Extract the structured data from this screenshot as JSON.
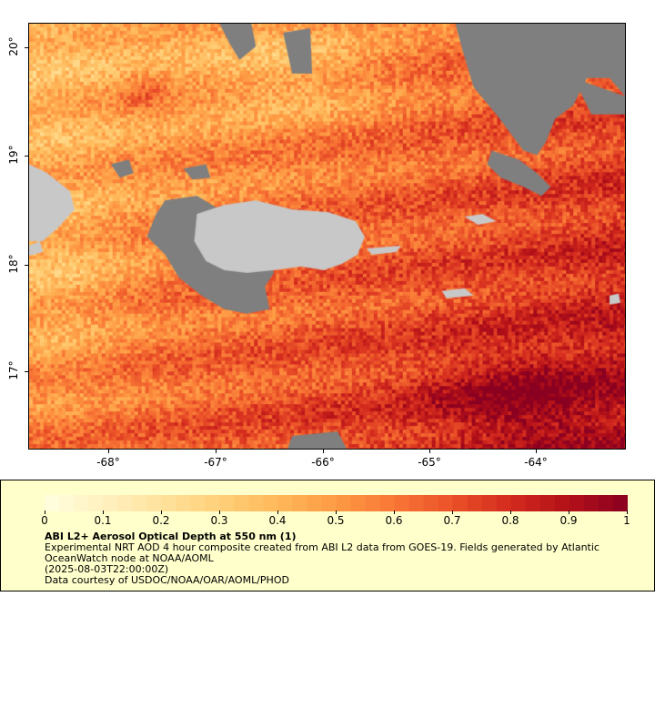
{
  "map": {
    "lat_labels": [
      "20°",
      "19°",
      "18°",
      "17°"
    ],
    "lon_labels": [
      "-68°",
      "-67°",
      "-66°",
      "-65°",
      "-64°"
    ],
    "extent": {
      "lon_min": -68.75,
      "lon_max": -63.25,
      "lat_min": 16.3,
      "lat_max": 20.25
    },
    "colors": {
      "land": "#c8c8c8",
      "no_data": "#7f7f7f",
      "water_outline": "#5aa0c8"
    }
  },
  "legend": {
    "tick_labels": [
      "0",
      "0.1",
      "0.2",
      "0.3",
      "0.4",
      "0.5",
      "0.6",
      "0.7",
      "0.8",
      "0.9",
      "1"
    ],
    "title": "ABI L2+ Aerosol Optical Depth at 550 nm (1)",
    "line1": "Experimental NRT AOD 4 hour composite created from ABI L2 data from GOES-19. Fields generated by Atlantic OceanWatch node at NOAA/AOML",
    "line2": "(2025-08-03T22:00:00Z)",
    "line3": "Data courtesy of USDOC/NOAA/OAR/AOML/PHOD",
    "colors": [
      "#ffffe0",
      "#fff1c0",
      "#ffe29c",
      "#ffd079",
      "#ffb85a",
      "#fe9a44",
      "#f87635",
      "#ea5128",
      "#d32a1e",
      "#b21018",
      "#8a0020"
    ]
  }
}
